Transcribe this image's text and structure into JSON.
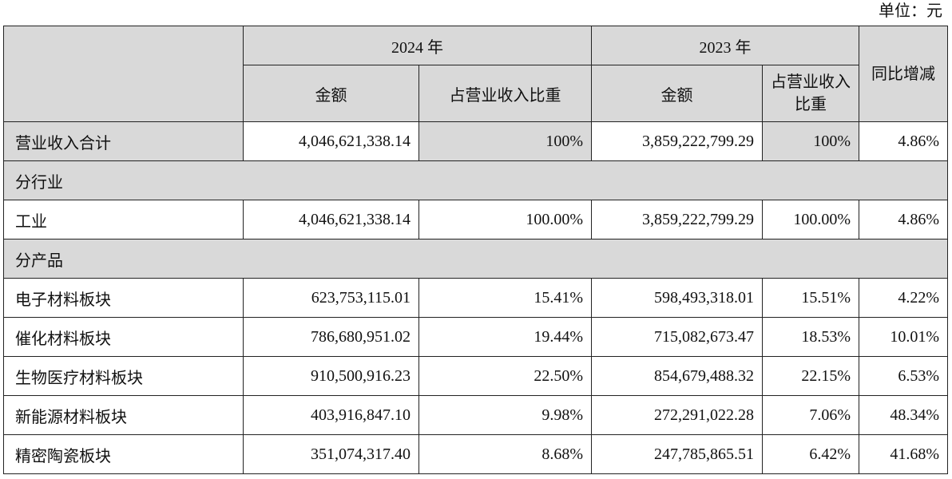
{
  "unit_note": "单位：元",
  "headers": {
    "year_2024": "2024 年",
    "year_2023": "2023 年",
    "yoy": "同比增减",
    "amount": "金额",
    "share_2024": "占营业收入比重",
    "share_2023": "占营业收入比重"
  },
  "rows": [
    {
      "label": "营业收入合计",
      "amt2024": "4,046,621,338.14",
      "share2024": "100%",
      "amt2023": "3,859,222,799.29",
      "share2023": "100%",
      "yoy": "4.86%"
    },
    {
      "label": "分行业"
    },
    {
      "label": "工业",
      "amt2024": "4,046,621,338.14",
      "share2024": "100.00%",
      "amt2023": "3,859,222,799.29",
      "share2023": "100.00%",
      "yoy": "4.86%"
    },
    {
      "label": "分产品"
    },
    {
      "label": "电子材料板块",
      "amt2024": "623,753,115.01",
      "share2024": "15.41%",
      "amt2023": "598,493,318.01",
      "share2023": "15.51%",
      "yoy": "4.22%"
    },
    {
      "label": "催化材料板块",
      "amt2024": "786,680,951.02",
      "share2024": "19.44%",
      "amt2023": "715,082,673.47",
      "share2023": "18.53%",
      "yoy": "10.01%"
    },
    {
      "label": "生物医疗材料板块",
      "amt2024": "910,500,916.23",
      "share2024": "22.50%",
      "amt2023": "854,679,488.32",
      "share2023": "22.15%",
      "yoy": "6.53%"
    },
    {
      "label": "新能源材料板块",
      "amt2024": "403,916,847.10",
      "share2024": "9.98%",
      "amt2023": "272,291,022.28",
      "share2023": "7.06%",
      "yoy": "48.34%"
    },
    {
      "label": "精密陶瓷板块",
      "amt2024": "351,074,317.40",
      "share2024": "8.68%",
      "amt2023": "247,785,865.51",
      "share2023": "6.42%",
      "yoy": "41.68%"
    }
  ]
}
